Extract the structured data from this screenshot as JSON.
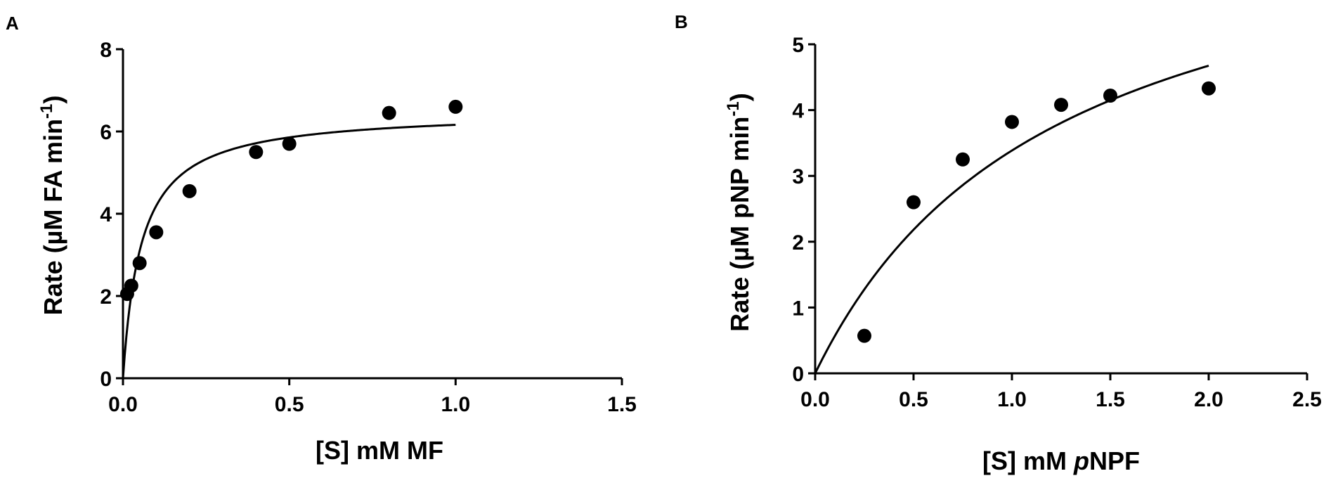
{
  "chart_data": [
    {
      "panel": "A",
      "type": "scatter",
      "xlabel": "[S] mM MF",
      "ylabel": "Rate (µM FA min-1)",
      "ylabel_parts": {
        "main": "Rate (µM FA min",
        "sup": "-1",
        "end": ")"
      },
      "xlim": [
        0,
        1.5
      ],
      "ylim": [
        0,
        8
      ],
      "xticks": [
        0.0,
        0.5,
        1.0,
        1.5
      ],
      "xtick_labels": [
        "0.0",
        "0.5",
        "1.0",
        "1.5"
      ],
      "yticks": [
        0,
        2,
        4,
        6,
        8
      ],
      "ytick_labels": [
        "0",
        "2",
        "4",
        "6",
        "8"
      ],
      "points": {
        "x": [
          0.0125,
          0.025,
          0.05,
          0.1,
          0.2,
          0.4,
          0.5,
          0.8,
          1.0
        ],
        "y": [
          2.05,
          2.25,
          2.8,
          3.55,
          4.55,
          5.5,
          5.7,
          6.45,
          6.6
        ]
      },
      "fit_curve": {
        "model": "michaelis-menten",
        "vmax": 6.5,
        "km": 0.055,
        "x_range": [
          0,
          1.0
        ]
      },
      "grid": false,
      "legend": "none"
    },
    {
      "panel": "B",
      "type": "scatter",
      "xlabel": "[S] mM pNPF",
      "xlabel_parts": {
        "pre": "[S] mM ",
        "italic": "p",
        "post": "NPF"
      },
      "ylabel": "Rate (µM pNP min-1)",
      "ylabel_parts": {
        "main": "Rate (µM pNP min",
        "sup": "-1",
        "end": ")"
      },
      "xlim": [
        0,
        2.5
      ],
      "ylim": [
        0,
        5
      ],
      "xticks": [
        0.0,
        0.5,
        1.0,
        1.5,
        2.0,
        2.5
      ],
      "xtick_labels": [
        "0.0",
        "0.5",
        "1.0",
        "1.5",
        "2.0",
        "2.5"
      ],
      "yticks": [
        0,
        1,
        2,
        3,
        4,
        5
      ],
      "ytick_labels": [
        "0",
        "1",
        "2",
        "3",
        "4",
        "5"
      ],
      "points": {
        "x": [
          0.25,
          0.5,
          0.75,
          1.0,
          1.25,
          1.5,
          2.0
        ],
        "y": [
          0.57,
          2.6,
          3.25,
          3.82,
          4.08,
          4.22,
          4.33
        ]
      },
      "fit_curve": {
        "model": "michaelis-menten",
        "vmax": 7.55,
        "km": 1.23,
        "x_range": [
          0,
          2.0
        ]
      },
      "grid": false,
      "legend": "none"
    }
  ]
}
